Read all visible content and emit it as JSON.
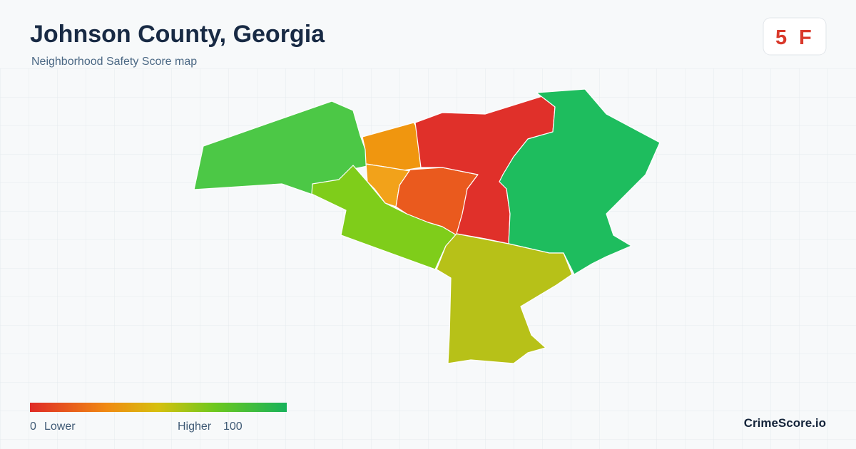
{
  "header": {
    "title": "Johnson County, Georgia",
    "subtitle": "Neighborhood Safety Score map"
  },
  "score": {
    "value": 5,
    "grade": "F"
  },
  "legend": {
    "min": 0,
    "min_label": "Lower",
    "max_label": "Higher",
    "max": 100
  },
  "brand": "CrimeScore.io"
}
